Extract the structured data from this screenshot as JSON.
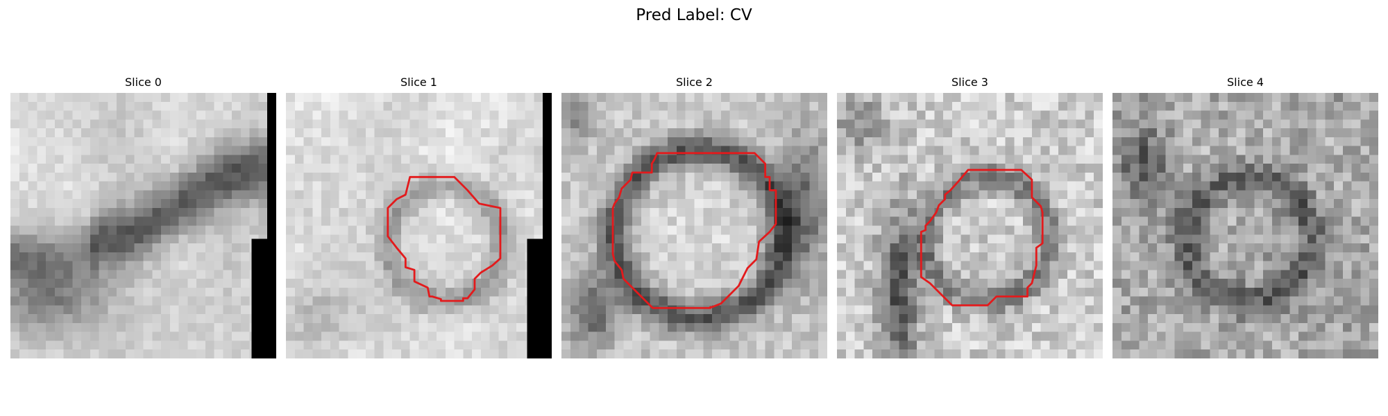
{
  "figure": {
    "title": "Pred Label: CV"
  },
  "panels": [
    {
      "title": "Slice 0",
      "slice_index": 0,
      "has_contour": false,
      "has_padding_bar": true
    },
    {
      "title": "Slice 1",
      "slice_index": 1,
      "has_contour": true,
      "has_padding_bar": true
    },
    {
      "title": "Slice 2",
      "slice_index": 2,
      "has_contour": true,
      "has_padding_bar": false
    },
    {
      "title": "Slice 3",
      "slice_index": 3,
      "has_contour": true,
      "has_padding_bar": false
    },
    {
      "title": "Slice 4",
      "slice_index": 4,
      "has_contour": false,
      "has_padding_bar": false
    }
  ],
  "colors": {
    "contour": "#e31a1c",
    "padding": "#000000",
    "background": "#ffffff"
  }
}
